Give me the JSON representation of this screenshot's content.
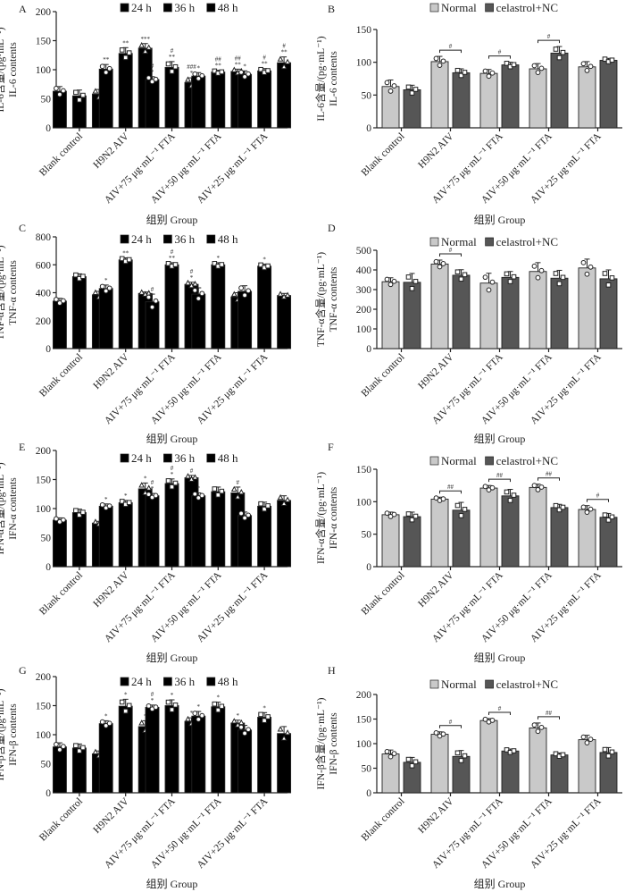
{
  "colors": {
    "24h": "#c9c9c9",
    "36h": "#565656",
    "48h": "#a8a8a8",
    "Normal": "#c9c9c9",
    "celastrol+NC": "#565656"
  },
  "categories": [
    "Blank control",
    "H9N2 AIV",
    "AIV+75 μg·mL⁻¹ FTA",
    "AIV+50 μg·mL⁻¹ FTA",
    "AIV+25 μg·mL⁻¹ FTA"
  ],
  "chart_data": [
    {
      "panel": "A",
      "type": "bar",
      "ylabel_cn": "IL-6含量/(pg·mL⁻¹)",
      "ylabel_en": "IL-6 contents",
      "xlabel": "组别 Group",
      "ylim": [
        0,
        200
      ],
      "yticks": [
        0,
        50,
        100,
        150,
        200
      ],
      "legend": [
        "24 h",
        "36 h",
        "48 h"
      ],
      "legend_position": "top",
      "series": [
        {
          "name": "24 h",
          "values": [
            63,
            101,
            83,
            89,
            92
          ],
          "errors": [
            8,
            8,
            5,
            6,
            6
          ],
          "sig": [
            "",
            "**",
            "#\n*",
            "*",
            "*"
          ]
        },
        {
          "name": "36 h",
          "values": [
            55,
            128,
            104,
            96,
            98
          ],
          "errors": [
            10,
            10,
            10,
            3,
            4
          ],
          "sig": [
            "",
            "**",
            "#\n**",
            "##\n**",
            "#\n**"
          ]
        },
        {
          "name": "48 h",
          "values": [
            58,
            137,
            78,
            97,
            112
          ],
          "errors": [
            8,
            8,
            8,
            4,
            10
          ],
          "sig": [
            "",
            "***",
            "###\n*",
            "##\n**",
            "#\n**"
          ]
        }
      ]
    },
    {
      "panel": "B",
      "type": "bar",
      "ylabel_cn": "IL-6含量/(pg·mL⁻¹)",
      "ylabel_en": "IL-6 contents",
      "xlabel": "组别 Group",
      "ylim": [
        0,
        150
      ],
      "yticks": [
        0,
        50,
        100,
        150
      ],
      "legend": [
        "Normal",
        "celastrol+NC"
      ],
      "legend_position": "top",
      "series": [
        {
          "name": "Normal",
          "values": [
            63,
            101,
            83,
            90,
            93
          ],
          "errors": [
            10,
            8,
            6,
            8,
            8
          ]
        },
        {
          "name": "celastrol+NC",
          "values": [
            58,
            84,
            96,
            114,
            103
          ],
          "errors": [
            7,
            6,
            4,
            10,
            3
          ]
        }
      ],
      "brackets": [
        {
          "group": 1,
          "label": "#"
        },
        {
          "group": 2,
          "label": "#"
        },
        {
          "group": 3,
          "label": "#"
        }
      ]
    },
    {
      "panel": "C",
      "type": "bar",
      "ylabel_cn": "TNF-α含量/(pg·mL⁻¹)",
      "ylabel_en": "TNF-α contents",
      "xlabel": "组别 Group",
      "ylim": [
        0,
        800
      ],
      "yticks": [
        0,
        200,
        400,
        600,
        800
      ],
      "legend": [
        "24 h",
        "36 h",
        "48 h"
      ],
      "legend_position": "top",
      "series": [
        {
          "name": "24 h",
          "values": [
            340,
            430,
            335,
            390,
            410
          ],
          "errors": [
            20,
            25,
            55,
            45,
            40
          ],
          "sig": [
            "",
            "*",
            "#",
            "",
            ""
          ]
        },
        {
          "name": "36 h",
          "values": [
            515,
            635,
            600,
            600,
            590
          ],
          "errors": [
            20,
            15,
            15,
            15,
            15
          ],
          "sig": [
            "",
            "**",
            "#\n**",
            "*",
            "*"
          ]
        },
        {
          "name": "48 h",
          "values": [
            385,
            395,
            460,
            370,
            380
          ],
          "errors": [
            25,
            10,
            15,
            30,
            15
          ],
          "sig": [
            "",
            "",
            "#\n*",
            "",
            ""
          ]
        }
      ]
    },
    {
      "panel": "D",
      "type": "bar",
      "ylabel_cn": "TNF-α含量/(pg·mL⁻¹)",
      "ylabel_en": "TNF-α contents",
      "xlabel": "组别 Group",
      "ylim": [
        0,
        500
      ],
      "yticks": [
        0,
        100,
        200,
        300,
        400,
        500
      ],
      "legend": [
        "Normal",
        "celastrol+NC"
      ],
      "legend_position": "top",
      "series": [
        {
          "name": "Normal",
          "values": [
            340,
            430,
            333,
            392,
            410
          ],
          "errors": [
            20,
            20,
            50,
            45,
            45
          ]
        },
        {
          "name": "celastrol+NC",
          "values": [
            337,
            373,
            362,
            358,
            355
          ],
          "errors": [
            45,
            28,
            30,
            40,
            45
          ]
        }
      ],
      "brackets": [
        {
          "group": 1,
          "label": "#"
        }
      ]
    },
    {
      "panel": "E",
      "type": "bar",
      "ylabel_cn": "IFN-α含量/(pg·mL⁻¹)",
      "ylabel_en": "IFN-α contents",
      "xlabel": "组别 Group",
      "ylim": [
        0,
        200
      ],
      "yticks": [
        0,
        50,
        100,
        150,
        200
      ],
      "legend": [
        "24 h",
        "36 h",
        "48 h"
      ],
      "legend_position": "top",
      "series": [
        {
          "name": "24 h",
          "values": [
            80,
            104,
            122,
            122,
            88
          ],
          "errors": [
            4,
            4,
            4,
            5,
            6
          ],
          "sig": [
            "",
            "*",
            "#\n*",
            "*",
            ""
          ]
        },
        {
          "name": "36 h",
          "values": [
            93,
            110,
            143,
            129,
            104
          ],
          "errors": [
            6,
            4,
            8,
            8,
            7
          ],
          "sig": [
            "",
            "*",
            "#\n*",
            "",
            ""
          ]
        },
        {
          "name": "48 h",
          "values": [
            75,
            134,
            153,
            127,
            114
          ],
          "errors": [
            3,
            10,
            4,
            10,
            8
          ],
          "sig": [
            "",
            "*",
            "#",
            "#",
            ""
          ]
        }
      ]
    },
    {
      "panel": "F",
      "type": "bar",
      "ylabel_cn": "IFN-α含量/(pg·mL⁻¹)",
      "ylabel_en": "IFN-α contents",
      "xlabel": "组别 Group",
      "ylim": [
        0,
        150
      ],
      "yticks": [
        0,
        50,
        100,
        150
      ],
      "legend": [
        "Normal",
        "celastrol+NC"
      ],
      "legend_position": "top",
      "series": [
        {
          "name": "Normal",
          "values": [
            80,
            104,
            121,
            122,
            88
          ],
          "errors": [
            4,
            3,
            4,
            5,
            6
          ]
        },
        {
          "name": "celastrol+NC",
          "values": [
            77,
            87,
            109,
            91,
            76
          ],
          "errors": [
            7,
            12,
            10,
            5,
            6
          ]
        }
      ],
      "brackets": [
        {
          "group": 1,
          "label": "##"
        },
        {
          "group": 2,
          "label": "##"
        },
        {
          "group": 3,
          "label": "##"
        },
        {
          "group": 4,
          "label": "#"
        }
      ]
    },
    {
      "panel": "G",
      "type": "bar",
      "ylabel_cn": "IFN-β含量/(pg·mL⁻¹)",
      "ylabel_en": "IFN-β contents",
      "xlabel": "组别 Group",
      "ylim": [
        0,
        200
      ],
      "yticks": [
        0,
        50,
        100,
        150,
        200
      ],
      "legend": [
        "24 h",
        "36 h",
        "48 h"
      ],
      "legend_position": "top",
      "series": [
        {
          "name": "24 h",
          "values": [
            79,
            119,
            147,
            132,
            108
          ],
          "errors": [
            7,
            5,
            4,
            8,
            8
          ],
          "sig": [
            "",
            "*",
            "#\n*",
            "*",
            ""
          ]
        },
        {
          "name": "36 h",
          "values": [
            77,
            149,
            150,
            148,
            130
          ],
          "errors": [
            7,
            12,
            10,
            8,
            8
          ],
          "sig": [
            "",
            "*",
            "*",
            "*",
            "*"
          ]
        },
        {
          "name": "48 h",
          "values": [
            67,
            114,
            123,
            120,
            102
          ],
          "errors": [
            5,
            10,
            6,
            5,
            12
          ],
          "sig": [
            "",
            "*",
            "*",
            "*",
            ""
          ]
        }
      ]
    },
    {
      "panel": "H",
      "type": "bar",
      "ylabel_cn": "IFN-β含量/(pg·mL⁻¹)",
      "ylabel_en": "IFN-β contents",
      "xlabel": "组别 Group",
      "ylim": [
        0,
        200
      ],
      "yticks": [
        0,
        50,
        100,
        150,
        200
      ],
      "legend": [
        "Normal",
        "celastrol+NC"
      ],
      "legend_position": "top",
      "series": [
        {
          "name": "Normal",
          "values": [
            79,
            119,
            147,
            132,
            108
          ],
          "errors": [
            8,
            5,
            4,
            10,
            9
          ]
        },
        {
          "name": "celastrol+NC",
          "values": [
            62,
            74,
            85,
            77,
            82
          ],
          "errors": [
            10,
            12,
            4,
            4,
            10
          ]
        }
      ],
      "brackets": [
        {
          "group": 1,
          "label": "#"
        },
        {
          "group": 2,
          "label": "#"
        },
        {
          "group": 3,
          "label": "##"
        }
      ]
    }
  ]
}
